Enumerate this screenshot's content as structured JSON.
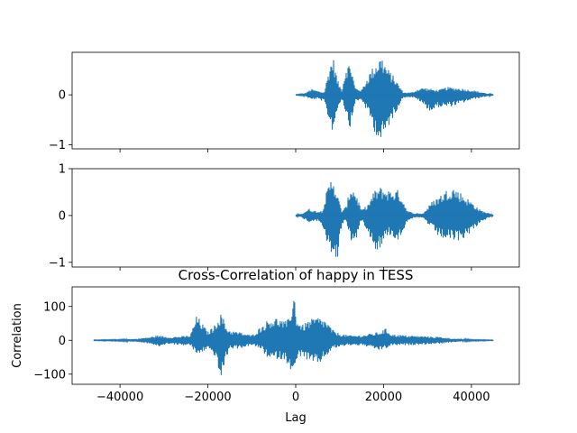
{
  "chart_data": [
    {
      "type": "line",
      "color": "#1f77b4",
      "title": "",
      "xlabel": "",
      "ylabel": "",
      "xlim": [
        -50900,
        50900
      ],
      "ylim": [
        -1.08,
        0.85
      ],
      "xticks": [
        -40000,
        -20000,
        0,
        20000,
        40000
      ],
      "xtick_labels_shown": false,
      "yticks": [
        -1,
        0
      ],
      "ytick_labels": [
        "−1",
        "0"
      ],
      "signal_x_range": [
        0,
        45000
      ],
      "envelope": {
        "x": [
          0,
          2000,
          3500,
          5000,
          6500,
          7800,
          8500,
          9500,
          10500,
          11500,
          12500,
          13500,
          15000,
          16800,
          18000,
          19500,
          20800,
          22500,
          24500,
          26500,
          27800,
          29000,
          30800,
          32500,
          34500,
          37000,
          40000,
          42500,
          44000,
          45000
        ],
        "upper": [
          0.005,
          0.02,
          0.12,
          0.08,
          0.05,
          0.62,
          0.78,
          0.3,
          0.1,
          0.6,
          0.65,
          0.15,
          0.1,
          0.45,
          0.62,
          0.8,
          0.55,
          0.35,
          0.05,
          0.05,
          0.12,
          0.15,
          0.12,
          0.1,
          0.16,
          0.14,
          0.1,
          0.05,
          0.02,
          0.005
        ],
        "lower": [
          -0.005,
          -0.02,
          -0.1,
          -0.08,
          -0.15,
          -0.6,
          -0.75,
          -0.3,
          -0.08,
          -0.4,
          -0.7,
          -0.15,
          -0.1,
          -0.45,
          -0.75,
          -1.0,
          -0.7,
          -0.4,
          -0.05,
          -0.05,
          -0.1,
          -0.2,
          -0.35,
          -0.25,
          -0.25,
          -0.2,
          -0.1,
          -0.05,
          -0.02,
          -0.005
        ]
      }
    },
    {
      "type": "line",
      "color": "#1f77b4",
      "title": "",
      "xlabel": "",
      "ylabel": "",
      "xlim": [
        -50900,
        50900
      ],
      "ylim": [
        -1.1,
        1.0
      ],
      "xticks": [
        -40000,
        -20000,
        0,
        20000,
        40000
      ],
      "xtick_labels_shown": false,
      "yticks": [
        -1,
        0,
        1
      ],
      "ytick_labels": [
        "−1",
        "0",
        "1"
      ],
      "signal_x_range": [
        0,
        45000
      ],
      "envelope": {
        "x": [
          0,
          1500,
          3000,
          4500,
          6000,
          7000,
          8400,
          9500,
          10500,
          11500,
          12500,
          13500,
          15000,
          16500,
          18000,
          19500,
          21000,
          23500,
          25500,
          27000,
          29000,
          31000,
          33000,
          35500,
          37500,
          40000,
          42000,
          44000,
          45000
        ],
        "upper": [
          0.01,
          0.05,
          0.15,
          0.1,
          0.1,
          0.5,
          0.9,
          0.45,
          0.1,
          0.2,
          0.65,
          0.55,
          0.12,
          0.25,
          0.55,
          0.62,
          0.55,
          0.55,
          0.1,
          0.05,
          0.05,
          0.3,
          0.45,
          0.65,
          0.5,
          0.3,
          0.12,
          0.05,
          0.01
        ],
        "lower": [
          -0.01,
          -0.05,
          -0.15,
          -0.1,
          -0.2,
          -0.65,
          -0.85,
          -1.0,
          -0.2,
          -0.1,
          -0.55,
          -0.6,
          -0.1,
          -0.35,
          -0.75,
          -0.7,
          -0.4,
          -0.55,
          -0.1,
          -0.05,
          -0.05,
          -0.3,
          -0.5,
          -0.55,
          -0.55,
          -0.35,
          -0.15,
          -0.05,
          -0.01
        ]
      }
    },
    {
      "type": "line",
      "color": "#1f77b4",
      "title": "Cross-Correlation of happy in TESS",
      "xlabel": "Lag",
      "ylabel": "Correlation",
      "xlim": [
        -50900,
        50900
      ],
      "ylim": [
        -130,
        158
      ],
      "xticks": [
        -40000,
        -20000,
        0,
        20000,
        40000
      ],
      "xtick_labels": [
        "−40000",
        "−20000",
        "0",
        "20000",
        "40000"
      ],
      "yticks": [
        -100,
        0,
        100
      ],
      "ytick_labels": [
        "−100",
        "0",
        "100"
      ],
      "signal_x_range": [
        -46000,
        45000
      ],
      "envelope": {
        "x": [
          -46000,
          -40000,
          -36000,
          -33000,
          -31500,
          -29000,
          -26000,
          -24000,
          -22500,
          -20000,
          -18500,
          -17500,
          -16800,
          -16000,
          -15000,
          -13000,
          -10000,
          -8000,
          -6000,
          -4000,
          -2500,
          -1500,
          -800,
          -300,
          0,
          500,
          1500,
          3000,
          5000,
          6800,
          8500,
          10000,
          12000,
          15000,
          19000,
          20500,
          22000,
          25000,
          30000,
          33000,
          36000,
          40000,
          45000
        ],
        "upper": [
          1,
          2,
          5,
          10,
          15,
          10,
          12,
          15,
          75,
          25,
          45,
          75,
          80,
          45,
          30,
          25,
          15,
          40,
          65,
          68,
          55,
          65,
          115,
          145,
          80,
          60,
          45,
          60,
          70,
          60,
          30,
          20,
          15,
          15,
          25,
          35,
          18,
          15,
          12,
          10,
          5,
          2,
          1
        ],
        "lower": [
          -1,
          -2,
          -5,
          -10,
          -20,
          -10,
          -15,
          -15,
          -45,
          -25,
          -45,
          -95,
          -118,
          -60,
          -25,
          -25,
          -15,
          -25,
          -60,
          -55,
          -60,
          -75,
          -100,
          -115,
          -80,
          -50,
          -45,
          -65,
          -75,
          -50,
          -25,
          -20,
          -15,
          -15,
          -30,
          -25,
          -15,
          -15,
          -12,
          -10,
          -5,
          -2,
          -1
        ]
      }
    }
  ]
}
